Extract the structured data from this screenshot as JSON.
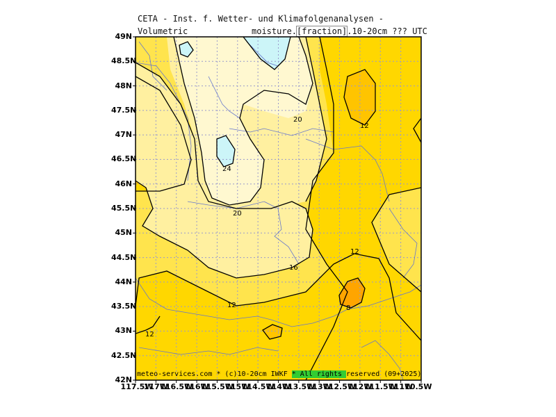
{
  "header": {
    "line1": "CETA - Inst. f. Wetter- und Klimafolgenanalysen -",
    "line2_left": "Volumetric",
    "line2_right_a": "moisture.",
    "line2_right_box": "[fraction]",
    "line2_right_b": ".10-20cm ??? UTC"
  },
  "axes": {
    "y_labels": [
      "49N",
      "48.5N",
      "48N",
      "47.5N",
      "47N",
      "46.5N",
      "46N",
      "45.5N",
      "45N",
      "44.5N",
      "44N",
      "43.5N",
      "43N",
      "42.5N",
      "42N"
    ],
    "x_labels": [
      "117.5W",
      "117W",
      "116.5W",
      "116W",
      "115.5W",
      "115W",
      "114.5W",
      "114W",
      "113.5W",
      "113W",
      "112.5W",
      "112W",
      "111.5W",
      "111W",
      "110.5W"
    ]
  },
  "contour_labels": {
    "c24": "24",
    "c20a": "20",
    "c20b": "20",
    "c16": "16",
    "c12a": "12",
    "c12b": "12",
    "c12c": "12",
    "c12d": "12",
    "c8": "8"
  },
  "footer": {
    "text_a": "meteo-services.com * (c)10-20cm IWKF ",
    "text_hl": "* All rights ",
    "text_b": "reserved (09+2025)"
  },
  "colors": {
    "fill_8_12": "#ffd700",
    "fill_12_16": "#ffe44d",
    "fill_16_20": "#fff0a0",
    "fill_20_24": "#fff8d0",
    "fill_over_24": "#ccf5f8",
    "fill_under_8": "#ffc400",
    "fill_under_4": "#ffa500",
    "contour": "#000000",
    "grid": "#9999cc",
    "border": "#6677cc"
  }
}
